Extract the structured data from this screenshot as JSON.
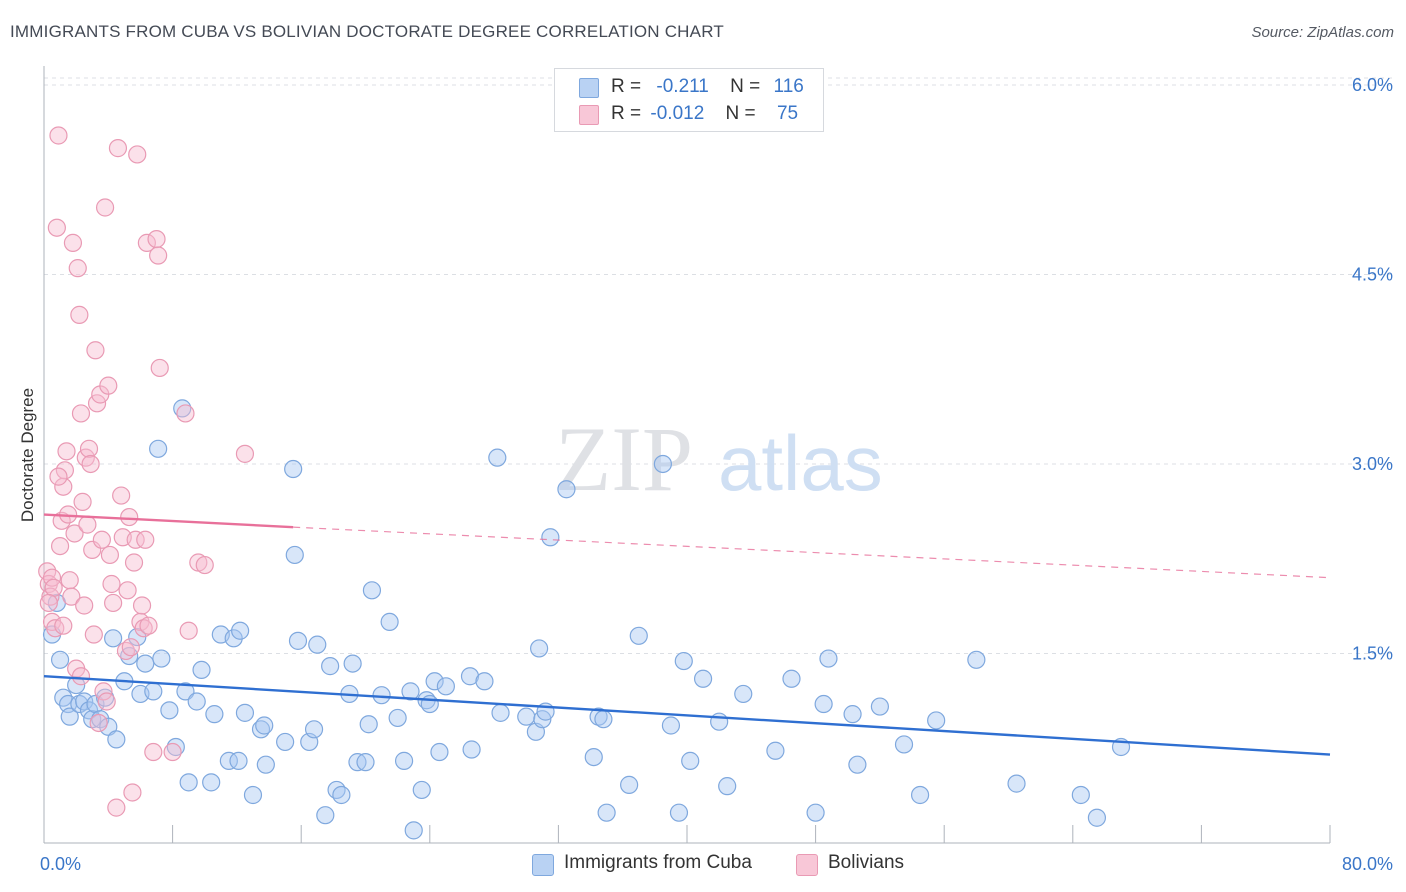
{
  "title": "IMMIGRANTS FROM CUBA VS BOLIVIAN DOCTORATE DEGREE CORRELATION CHART",
  "source": "Source: ZipAtlas.com",
  "watermark": {
    "zip": "ZIP",
    "atlas": "atlas"
  },
  "legend": {
    "rows": [
      {
        "r_label": "R =",
        "r_value": "-0.211",
        "n_label": "N =",
        "n_value": "116",
        "color": "#a9c8f2",
        "border": "#6f9fdc"
      },
      {
        "r_label": "R =",
        "r_value": "-0.012",
        "n_label": "N =",
        "n_value": "75",
        "color": "#f6bcd0",
        "border": "#e88aaa"
      }
    ]
  },
  "bottom_legend": [
    {
      "label": "Immigrants from Cuba",
      "color": "#b9d2f3",
      "border": "#7fa8de"
    },
    {
      "label": "Bolivians",
      "color": "#f8c7d7",
      "border": "#e99ab4"
    }
  ],
  "chart_data": {
    "type": "scatter",
    "title": "IMMIGRANTS FROM CUBA VS BOLIVIAN DOCTORATE DEGREE CORRELATION CHART",
    "xlabel": "",
    "ylabel": "Doctorate Degree",
    "xlim": [
      0,
      80
    ],
    "ylim": [
      0,
      6.15
    ],
    "x_tick_labels": [
      "0.0%",
      "80.0%"
    ],
    "y_ticks": [
      1.5,
      3.0,
      4.5,
      6.0
    ],
    "y_tick_labels": [
      "1.5%",
      "3.0%",
      "4.5%",
      "6.0%"
    ],
    "grid": true,
    "series": [
      {
        "name": "Immigrants from Cuba",
        "color": "#7fa8de",
        "fill": "rgba(169,200,242,0.45)",
        "trend": {
          "x": [
            0,
            80
          ],
          "y": [
            1.32,
            0.7
          ],
          "color": "#2f6fd1",
          "style": "solid"
        },
        "points": [
          [
            0.5,
            1.65
          ],
          [
            0.8,
            1.9
          ],
          [
            1.0,
            1.45
          ],
          [
            1.2,
            1.15
          ],
          [
            1.5,
            1.1
          ],
          [
            1.6,
            1.0
          ],
          [
            2.0,
            1.25
          ],
          [
            2.2,
            1.1
          ],
          [
            2.5,
            1.12
          ],
          [
            2.8,
            1.05
          ],
          [
            3.0,
            0.98
          ],
          [
            3.2,
            1.1
          ],
          [
            3.5,
            0.98
          ],
          [
            3.8,
            1.15
          ],
          [
            4.0,
            0.92
          ],
          [
            4.3,
            1.62
          ],
          [
            4.5,
            0.82
          ],
          [
            5.0,
            1.28
          ],
          [
            5.3,
            1.48
          ],
          [
            5.8,
            1.63
          ],
          [
            6.0,
            1.18
          ],
          [
            6.3,
            1.42
          ],
          [
            6.8,
            1.2
          ],
          [
            7.1,
            3.12
          ],
          [
            7.3,
            1.46
          ],
          [
            7.8,
            1.05
          ],
          [
            8.2,
            0.76
          ],
          [
            8.6,
            3.44
          ],
          [
            8.8,
            1.2
          ],
          [
            9.0,
            0.48
          ],
          [
            9.5,
            1.12
          ],
          [
            9.8,
            1.37
          ],
          [
            10.4,
            0.48
          ],
          [
            10.6,
            1.02
          ],
          [
            11.0,
            1.65
          ],
          [
            11.5,
            0.65
          ],
          [
            11.8,
            1.62
          ],
          [
            12.1,
            0.65
          ],
          [
            12.2,
            1.68
          ],
          [
            12.5,
            1.03
          ],
          [
            13.0,
            0.38
          ],
          [
            13.5,
            0.9
          ],
          [
            13.7,
            0.93
          ],
          [
            13.8,
            0.62
          ],
          [
            15.0,
            0.8
          ],
          [
            15.5,
            2.96
          ],
          [
            15.6,
            2.28
          ],
          [
            15.8,
            1.6
          ],
          [
            16.5,
            0.8
          ],
          [
            16.8,
            0.9
          ],
          [
            17.0,
            1.57
          ],
          [
            17.5,
            0.22
          ],
          [
            17.8,
            1.4
          ],
          [
            18.2,
            0.42
          ],
          [
            18.5,
            0.38
          ],
          [
            19.0,
            1.18
          ],
          [
            19.2,
            1.42
          ],
          [
            19.5,
            0.64
          ],
          [
            20.0,
            0.64
          ],
          [
            20.2,
            0.94
          ],
          [
            20.4,
            2.0
          ],
          [
            21.0,
            1.17
          ],
          [
            21.5,
            1.75
          ],
          [
            22.0,
            0.99
          ],
          [
            22.4,
            0.65
          ],
          [
            22.8,
            1.2
          ],
          [
            23.0,
            0.1
          ],
          [
            23.5,
            0.42
          ],
          [
            23.8,
            1.13
          ],
          [
            24.0,
            1.1
          ],
          [
            24.3,
            1.28
          ],
          [
            24.6,
            0.72
          ],
          [
            25.0,
            1.24
          ],
          [
            26.5,
            1.32
          ],
          [
            26.6,
            0.74
          ],
          [
            27.4,
            1.28
          ],
          [
            28.2,
            3.05
          ],
          [
            28.4,
            1.03
          ],
          [
            30.0,
            1.0
          ],
          [
            30.6,
            0.88
          ],
          [
            30.8,
            1.54
          ],
          [
            31.0,
            0.98
          ],
          [
            31.2,
            1.04
          ],
          [
            31.5,
            2.42
          ],
          [
            32.5,
            2.8
          ],
          [
            34.2,
            0.68
          ],
          [
            34.5,
            1.0
          ],
          [
            34.8,
            0.98
          ],
          [
            35.0,
            0.24
          ],
          [
            36.4,
            0.46
          ],
          [
            37.0,
            1.64
          ],
          [
            38.5,
            3.0
          ],
          [
            39.0,
            0.93
          ],
          [
            39.5,
            0.24
          ],
          [
            39.8,
            1.44
          ],
          [
            40.2,
            0.65
          ],
          [
            41.0,
            1.3
          ],
          [
            42.0,
            0.96
          ],
          [
            42.5,
            0.45
          ],
          [
            43.5,
            1.18
          ],
          [
            45.5,
            0.73
          ],
          [
            46.5,
            1.3
          ],
          [
            48.0,
            0.24
          ],
          [
            48.5,
            1.1
          ],
          [
            48.8,
            1.46
          ],
          [
            50.3,
            1.02
          ],
          [
            50.6,
            0.62
          ],
          [
            52.0,
            1.08
          ],
          [
            53.5,
            0.78
          ],
          [
            54.5,
            0.38
          ],
          [
            55.5,
            0.97
          ],
          [
            58.0,
            1.45
          ],
          [
            60.5,
            0.47
          ],
          [
            64.5,
            0.38
          ],
          [
            65.5,
            0.2
          ],
          [
            67.0,
            0.76
          ]
        ]
      },
      {
        "name": "Bolivians",
        "color": "#e99ab4",
        "fill": "rgba(246,188,208,0.45)",
        "trend": {
          "x": [
            0,
            15.5
          ],
          "y": [
            2.6,
            2.5
          ],
          "color": "#e8709a",
          "style": "solid"
        },
        "trend_ext": {
          "x": [
            15.5,
            80
          ],
          "y": [
            2.5,
            2.1
          ],
          "color": "#e8709a",
          "style": "dashed"
        },
        "points": [
          [
            0.2,
            2.15
          ],
          [
            0.3,
            2.05
          ],
          [
            0.4,
            1.95
          ],
          [
            0.5,
            2.1
          ],
          [
            0.5,
            1.75
          ],
          [
            0.6,
            2.02
          ],
          [
            0.7,
            1.7
          ],
          [
            0.8,
            4.87
          ],
          [
            0.9,
            5.6
          ],
          [
            1.0,
            2.35
          ],
          [
            1.1,
            2.55
          ],
          [
            1.2,
            2.82
          ],
          [
            1.3,
            2.95
          ],
          [
            1.4,
            3.1
          ],
          [
            1.5,
            2.6
          ],
          [
            1.6,
            2.08
          ],
          [
            1.7,
            1.95
          ],
          [
            1.8,
            4.75
          ],
          [
            1.9,
            2.45
          ],
          [
            2.0,
            1.38
          ],
          [
            2.1,
            4.55
          ],
          [
            2.2,
            4.18
          ],
          [
            2.3,
            3.4
          ],
          [
            2.4,
            2.7
          ],
          [
            2.5,
            1.88
          ],
          [
            2.6,
            3.05
          ],
          [
            2.7,
            2.52
          ],
          [
            2.8,
            3.12
          ],
          [
            2.9,
            3.0
          ],
          [
            3.0,
            2.32
          ],
          [
            3.1,
            1.65
          ],
          [
            3.2,
            3.9
          ],
          [
            3.3,
            3.48
          ],
          [
            3.4,
            0.95
          ],
          [
            3.5,
            3.55
          ],
          [
            3.6,
            2.4
          ],
          [
            3.7,
            1.2
          ],
          [
            3.8,
            5.03
          ],
          [
            3.9,
            1.12
          ],
          [
            4.0,
            3.62
          ],
          [
            4.1,
            2.28
          ],
          [
            4.2,
            2.05
          ],
          [
            4.3,
            1.9
          ],
          [
            4.5,
            0.28
          ],
          [
            4.6,
            5.5
          ],
          [
            4.8,
            2.75
          ],
          [
            4.9,
            2.42
          ],
          [
            5.1,
            1.52
          ],
          [
            5.2,
            2.0
          ],
          [
            5.3,
            2.58
          ],
          [
            5.4,
            1.55
          ],
          [
            5.5,
            0.4
          ],
          [
            5.6,
            2.22
          ],
          [
            5.7,
            2.4
          ],
          [
            5.8,
            5.45
          ],
          [
            6.0,
            1.75
          ],
          [
            6.1,
            1.88
          ],
          [
            6.2,
            1.7
          ],
          [
            6.3,
            2.4
          ],
          [
            6.4,
            4.75
          ],
          [
            6.5,
            1.72
          ],
          [
            6.8,
            0.72
          ],
          [
            7.0,
            4.78
          ],
          [
            7.1,
            4.65
          ],
          [
            7.2,
            3.76
          ],
          [
            8.0,
            0.72
          ],
          [
            8.8,
            3.4
          ],
          [
            9.0,
            1.68
          ],
          [
            9.6,
            2.22
          ],
          [
            10.0,
            2.2
          ],
          [
            12.5,
            3.08
          ],
          [
            0.3,
            1.9
          ],
          [
            1.2,
            1.72
          ],
          [
            0.9,
            2.9
          ],
          [
            2.3,
            1.32
          ]
        ]
      }
    ]
  }
}
